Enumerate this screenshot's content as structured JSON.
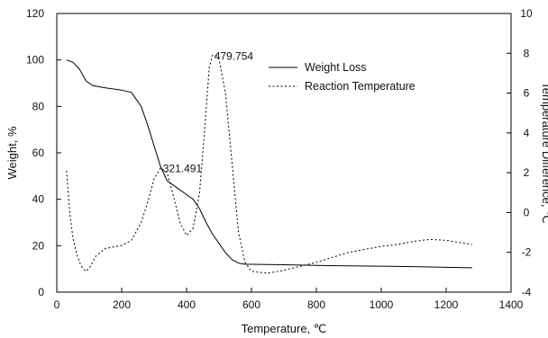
{
  "chart_data": {
    "type": "line",
    "xlabel": "Temperature, ℃",
    "ylabel": "Weight, %",
    "y2label": "Temperature Difference, ℃",
    "xlim": [
      0,
      1400
    ],
    "ylim": [
      0,
      120
    ],
    "y2lim": [
      -4,
      10
    ],
    "x_ticks": [
      "0",
      "200",
      "400",
      "600",
      "800",
      "1000",
      "1200",
      "1400"
    ],
    "y_ticks": [
      "0",
      "20",
      "40",
      "60",
      "80",
      "100",
      "120"
    ],
    "y2_ticks": [
      "-4",
      "-2",
      "0",
      "2",
      "4",
      "6",
      "8",
      "10"
    ],
    "grid": false,
    "legend_position": "top-right",
    "series": [
      {
        "name": "Weight Loss",
        "axis": "left",
        "style": "solid",
        "x": [
          30,
          50,
          70,
          90,
          110,
          150,
          200,
          230,
          260,
          280,
          300,
          320,
          340,
          360,
          380,
          400,
          420,
          440,
          460,
          480,
          500,
          520,
          540,
          560,
          580,
          600,
          700,
          800,
          900,
          1000,
          1100,
          1200,
          1280
        ],
        "y": [
          100,
          99,
          96,
          91,
          89,
          88,
          87,
          86,
          80,
          72,
          63,
          54,
          48,
          46,
          44,
          42,
          40,
          36,
          30,
          25,
          21,
          17,
          14,
          12.5,
          12,
          12,
          11.8,
          11.5,
          11.3,
          11.2,
          11,
          10.7,
          10.5
        ]
      },
      {
        "name": "Reaction Temperature",
        "axis": "right",
        "style": "dashed",
        "x": [
          30,
          40,
          50,
          60,
          70,
          80,
          90,
          100,
          120,
          150,
          200,
          230,
          260,
          280,
          300,
          320,
          340,
          360,
          380,
          400,
          420,
          440,
          455,
          470,
          480,
          490,
          500,
          520,
          540,
          560,
          580,
          600,
          650,
          700,
          800,
          900,
          1000,
          1050,
          1100,
          1150,
          1200,
          1280
        ],
        "y": [
          2.1,
          0,
          -1.3,
          -2,
          -2.5,
          -2.8,
          -2.95,
          -2.8,
          -2.2,
          -1.8,
          -1.65,
          -1.4,
          -0.5,
          0.5,
          1.7,
          2.25,
          2,
          0.8,
          -0.5,
          -1.15,
          -0.8,
          1,
          4,
          7.3,
          7.9,
          7.9,
          7.7,
          6,
          2.5,
          -1,
          -2.5,
          -2.95,
          -3.05,
          -2.9,
          -2.5,
          -2,
          -1.7,
          -1.6,
          -1.45,
          -1.35,
          -1.4,
          -1.6
        ]
      }
    ],
    "annotations": [
      {
        "text": "321.491",
        "x": 321.491,
        "y2": 2.25
      },
      {
        "text": "479.754",
        "x": 479.754,
        "y2": 7.9
      }
    ]
  }
}
